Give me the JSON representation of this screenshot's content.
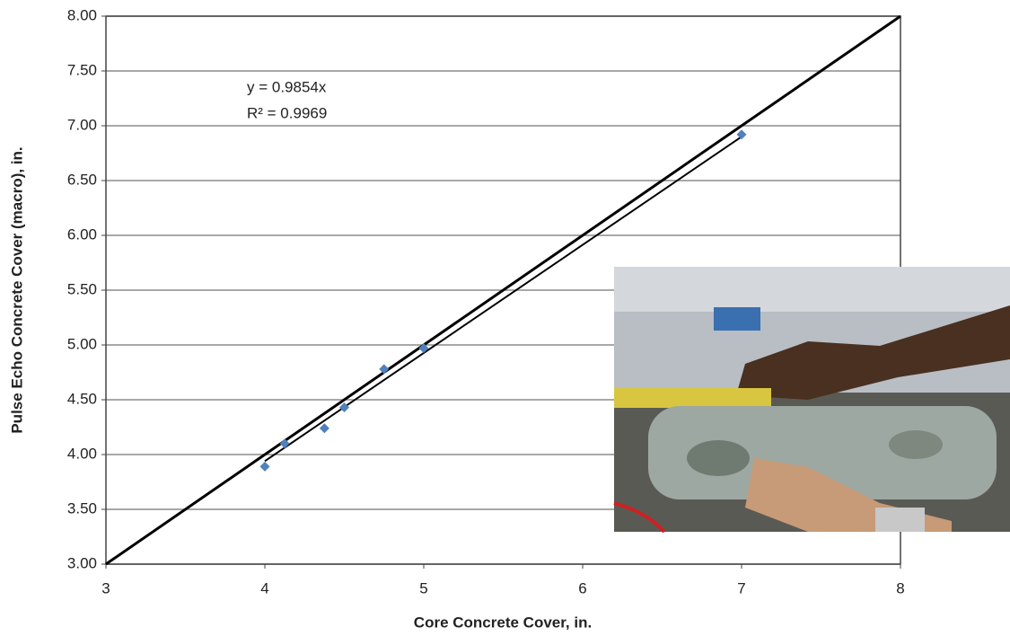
{
  "chart_data": {
    "type": "scatter",
    "xlabel": "Core Concrete Cover, in.",
    "ylabel": "Pulse Echo Concrete Cover (macro), in.",
    "annotations": [
      "y = 0.9854x",
      "R² = 0.9969"
    ],
    "series": [
      {
        "color": "#4f81bd",
        "x": [
          4,
          4.125,
          4.375,
          4.5,
          4.75,
          5,
          7
        ],
        "values": [
          3.89,
          4.1,
          4.24,
          4.43,
          4.78,
          4.97,
          6.92
        ]
      }
    ],
    "lines": [
      {
        "color": "#000000",
        "x": [
          3,
          8
        ],
        "values": [
          3,
          8
        ]
      },
      {
        "color": "#000000",
        "x": [
          4,
          7
        ],
        "values": [
          3.94,
          6.9
        ]
      }
    ],
    "xlim": [
      3,
      8
    ],
    "xticks": [
      3,
      4,
      5,
      6,
      7,
      8
    ],
    "ylim": [
      3,
      8
    ],
    "yticks": [
      {
        "value": 3,
        "label": "3.00"
      },
      {
        "value": 3.5,
        "label": "3.50"
      },
      {
        "value": 4,
        "label": "4.00"
      },
      {
        "value": 4.5,
        "label": "4.50"
      },
      {
        "value": 5,
        "label": "5.00"
      },
      {
        "value": 5.5,
        "label": "5.50"
      },
      {
        "value": 6,
        "label": "6.00"
      },
      {
        "value": 6.5,
        "label": "6.50"
      },
      {
        "value": 7,
        "label": "7.00"
      },
      {
        "value": 7.5,
        "label": "7.50"
      },
      {
        "value": 8,
        "label": "8.00"
      }
    ],
    "grid": true
  }
}
